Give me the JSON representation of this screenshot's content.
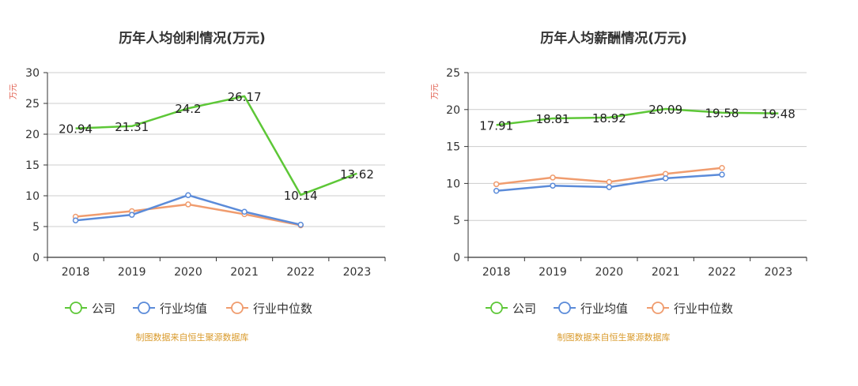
{
  "colors": {
    "company": "#5dc737",
    "industry_avg": "#5b8bd9",
    "industry_median": "#f09c6e",
    "unit_label": "#e05a4a",
    "source": "#d99a2b",
    "axis": "#333333",
    "grid": "#cccccc"
  },
  "chart_data": [
    {
      "type": "line",
      "title": "历年人均创利情况(万元)",
      "ylabel": "万元",
      "categories": [
        "2018",
        "2019",
        "2020",
        "2021",
        "2022",
        "2023"
      ],
      "ylim": [
        0,
        30
      ],
      "yticks": [
        0,
        5,
        10,
        15,
        20,
        25,
        30
      ],
      "series": [
        {
          "name": "公司",
          "color_key": "company",
          "values": [
            20.94,
            21.31,
            24.2,
            26.17,
            10.14,
            13.62
          ],
          "labels": [
            "20.94",
            "21.31",
            "24.2",
            "26.17",
            "10.14",
            "13.62"
          ]
        },
        {
          "name": "行业均值",
          "color_key": "industry_avg",
          "values": [
            6.0,
            6.9,
            10.1,
            7.4,
            5.3,
            null
          ]
        },
        {
          "name": "行业中位数",
          "color_key": "industry_median",
          "values": [
            6.6,
            7.5,
            8.6,
            7.0,
            5.2,
            null
          ]
        }
      ],
      "legend": [
        "公司",
        "行业均值",
        "行业中位数"
      ],
      "legend_position": "bottom",
      "grid": true,
      "source": "制图数据来自恒生聚源数据库"
    },
    {
      "type": "line",
      "title": "历年人均薪酬情况(万元)",
      "ylabel": "万元",
      "categories": [
        "2018",
        "2019",
        "2020",
        "2021",
        "2022",
        "2023"
      ],
      "ylim": [
        0,
        25
      ],
      "yticks": [
        0,
        5,
        10,
        15,
        20,
        25
      ],
      "series": [
        {
          "name": "公司",
          "color_key": "company",
          "values": [
            17.91,
            18.81,
            18.92,
            20.09,
            19.58,
            19.48
          ],
          "labels": [
            "17.91",
            "18.81",
            "18.92",
            "20.09",
            "19.58",
            "19.48"
          ]
        },
        {
          "name": "行业均值",
          "color_key": "industry_avg",
          "values": [
            9.0,
            9.7,
            9.5,
            10.7,
            11.2,
            null
          ]
        },
        {
          "name": "行业中位数",
          "color_key": "industry_median",
          "values": [
            9.9,
            10.8,
            10.2,
            11.3,
            12.1,
            null
          ]
        }
      ],
      "legend": [
        "公司",
        "行业均值",
        "行业中位数"
      ],
      "legend_position": "bottom",
      "grid": true,
      "source": "制图数据来自恒生聚源数据库"
    }
  ]
}
